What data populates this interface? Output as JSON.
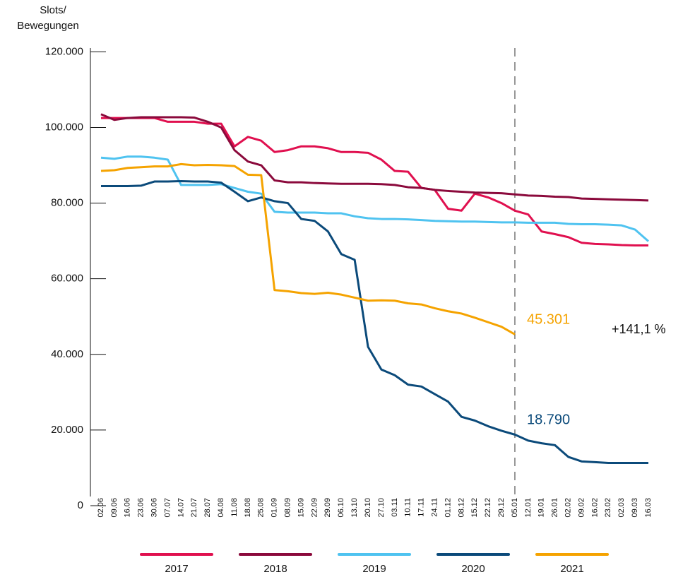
{
  "chart_data": {
    "type": "line",
    "y_label": [
      "Slots/",
      "Bewegungen"
    ],
    "categories": [
      "02.06",
      "09.06",
      "16.06",
      "23.06",
      "30.06",
      "07.07",
      "14.07",
      "21.07",
      "28.07",
      "04.08",
      "11.08",
      "18.08",
      "25.08",
      "01.09",
      "08.09",
      "15.09",
      "22.09",
      "29.09",
      "06.10",
      "13.10",
      "20.10",
      "27.10",
      "03.11",
      "10.11",
      "17.11",
      "24.11",
      "01.12",
      "08.12",
      "15.12",
      "22.12",
      "29.12",
      "05.01",
      "12.01",
      "19.01",
      "26.01",
      "02.02",
      "09.02",
      "16.02",
      "23.02",
      "02.03",
      "09.03",
      "16.03"
    ],
    "ylim": [
      0,
      121000
    ],
    "yticks": [
      0,
      {
        "value": 20000,
        "label": "20.000"
      },
      {
        "value": 40000,
        "label": "40.000"
      },
      {
        "value": 60000,
        "label": "60.000"
      },
      {
        "value": 80000,
        "label": "80.000"
      },
      {
        "value": 100000,
        "label": "100.000"
      },
      {
        "value": 120000,
        "label": "120.000"
      }
    ],
    "series": [
      {
        "name": "2017",
        "color": "#e0104f",
        "values": [
          102500,
          102500,
          102500,
          102500,
          102500,
          101500,
          101500,
          101500,
          101000,
          101000,
          95000,
          97500,
          96500,
          93500,
          94000,
          95000,
          95000,
          94500,
          93500,
          93500,
          93300,
          91500,
          88500,
          88300,
          84000,
          83500,
          78500,
          78000,
          82500,
          81500,
          80000,
          78000,
          77000,
          72500,
          71800,
          71000,
          69500,
          69200,
          69100,
          68900,
          68800,
          68800
        ]
      },
      {
        "name": "2018",
        "color": "#8b0a3c",
        "values": [
          103500,
          102000,
          102500,
          102700,
          102700,
          102700,
          102700,
          102600,
          101500,
          100000,
          94000,
          91000,
          90000,
          86000,
          85500,
          85500,
          85300,
          85200,
          85100,
          85100,
          85100,
          85000,
          84800,
          84200,
          84000,
          83500,
          83200,
          83000,
          82800,
          82700,
          82600,
          82300,
          82000,
          81900,
          81700,
          81600,
          81200,
          81100,
          81000,
          80900,
          80800,
          80700
        ]
      },
      {
        "name": "2019",
        "color": "#4fc3f0",
        "values": [
          92000,
          91700,
          92300,
          92300,
          92000,
          91500,
          84800,
          84800,
          84800,
          85000,
          84000,
          83000,
          82500,
          77700,
          77500,
          77500,
          77500,
          77300,
          77300,
          76500,
          76000,
          75800,
          75800,
          75700,
          75500,
          75300,
          75200,
          75100,
          75100,
          75000,
          74900,
          74900,
          74800,
          74800,
          74800,
          74500,
          74400,
          74400,
          74300,
          74100,
          73000,
          69900
        ]
      },
      {
        "name": "2020",
        "color": "#0b4a7a",
        "values": [
          84500,
          84500,
          84500,
          84600,
          85700,
          85700,
          85800,
          85700,
          85700,
          85400,
          83000,
          80500,
          81500,
          80500,
          80000,
          75800,
          75300,
          72500,
          66500,
          65000,
          42000,
          36000,
          34500,
          32000,
          31500,
          29500,
          27500,
          23500,
          22500,
          21000,
          19800,
          18790,
          17200,
          16500,
          16000,
          12900,
          11700,
          11500,
          11300,
          11300,
          11300,
          11300
        ],
        "value_labels": [
          null,
          null,
          null,
          null,
          null,
          null,
          null,
          null,
          null,
          null,
          null,
          null,
          null,
          null,
          null,
          null,
          null,
          null,
          null,
          null,
          null,
          null,
          null,
          null,
          null,
          null,
          null,
          null,
          null,
          null,
          null,
          "18.790",
          null,
          null,
          null,
          null,
          null,
          null,
          null,
          null,
          null,
          null
        ]
      },
      {
        "name": "2021",
        "color": "#f5a300",
        "values": [
          88500,
          88700,
          89300,
          89500,
          89700,
          89700,
          90300,
          90000,
          90100,
          90000,
          89800,
          87500,
          87400,
          57000,
          56700,
          56200,
          56000,
          56300,
          55800,
          55000,
          54200,
          54300,
          54200,
          53500,
          53200,
          52200,
          51400,
          50800,
          49700,
          48500,
          47300,
          45301,
          null,
          null,
          null,
          null,
          null,
          null,
          null,
          null,
          null,
          null
        ],
        "value_labels": [
          null,
          null,
          null,
          null,
          null,
          null,
          null,
          null,
          null,
          null,
          null,
          null,
          null,
          null,
          null,
          null,
          null,
          null,
          null,
          null,
          null,
          null,
          null,
          null,
          null,
          null,
          null,
          null,
          null,
          null,
          null,
          "45.301",
          null,
          null,
          null,
          null,
          null,
          null,
          null,
          null,
          null,
          null
        ]
      }
    ],
    "annotations": [
      "+141,1 %"
    ]
  }
}
